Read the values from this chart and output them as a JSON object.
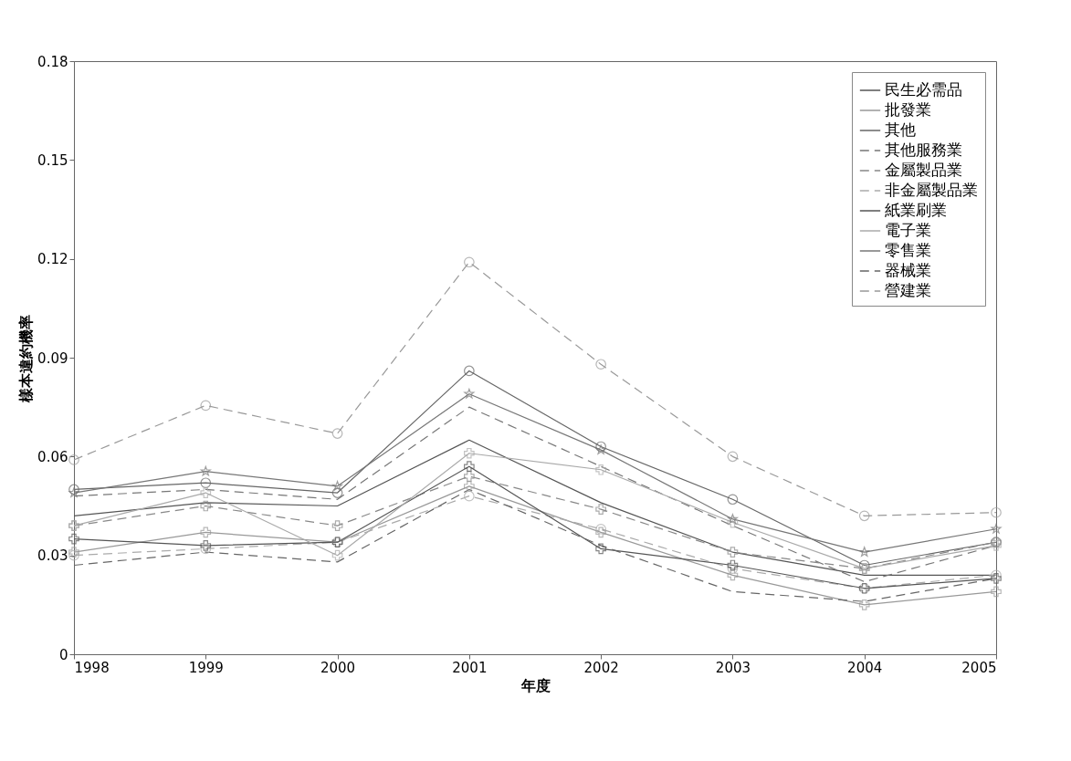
{
  "chart_data": {
    "type": "line",
    "xlabel": "年度",
    "ylabel": "樣本違約機率",
    "x": [
      1998,
      1999,
      2000,
      2001,
      2002,
      2003,
      2004,
      2005
    ],
    "xlim": [
      1998,
      2005
    ],
    "xticks": [
      1998,
      1999,
      2000,
      2001,
      2002,
      2003,
      2004,
      2005
    ],
    "ylim": [
      0,
      0.18
    ],
    "yticks": [
      0,
      0.03,
      0.06,
      0.09,
      0.12,
      0.15,
      0.18
    ],
    "grid": false,
    "legend": "top right",
    "series": [
      {
        "name": "民生必需品",
        "color": "#555555",
        "marker": "none",
        "line_style": "solid",
        "values": [
          0.042,
          0.046,
          0.045,
          0.065,
          0.046,
          0.031,
          0.024,
          0.024
        ]
      },
      {
        "name": "批發業",
        "color": "#999999",
        "marker": "cross",
        "line_style": "solid",
        "values": [
          0.031,
          0.037,
          0.034,
          0.051,
          0.037,
          0.024,
          0.015,
          0.019
        ]
      },
      {
        "name": "其他",
        "color": "#666666",
        "marker": "circle",
        "line_style": "solid",
        "values": [
          0.05,
          0.052,
          0.049,
          0.086,
          0.063,
          0.047,
          0.027,
          0.034
        ]
      },
      {
        "name": "其他服務業",
        "color": "#777777",
        "marker": "none",
        "line_style": "dashed",
        "values": [
          0.048,
          0.05,
          0.047,
          0.075,
          0.057,
          0.039,
          0.022,
          0.033
        ]
      },
      {
        "name": "金屬製品業",
        "color": "#888888",
        "marker": "cross",
        "line_style": "dashed",
        "values": [
          0.039,
          0.045,
          0.039,
          0.054,
          0.044,
          0.031,
          0.026,
          0.034
        ]
      },
      {
        "name": "非金屬製品業",
        "color": "#aaaaaa",
        "marker": "circle",
        "line_style": "dashed",
        "values": [
          0.03,
          0.032,
          0.034,
          0.048,
          0.038,
          0.026,
          0.02,
          0.024
        ]
      },
      {
        "name": "紙業刷業",
        "color": "#555555",
        "marker": "cross",
        "line_style": "solid",
        "values": [
          0.035,
          0.033,
          0.034,
          0.057,
          0.032,
          0.027,
          0.02,
          0.023
        ]
      },
      {
        "name": "電子業",
        "color": "#aaaaaa",
        "marker": "cross",
        "line_style": "solid",
        "values": [
          0.039,
          0.049,
          0.03,
          0.061,
          0.056,
          0.04,
          0.026,
          0.033
        ]
      },
      {
        "name": "零售業",
        "color": "#777777",
        "marker": "star",
        "line_style": "solid",
        "values": [
          0.049,
          0.0555,
          0.051,
          0.079,
          0.062,
          0.041,
          0.031,
          0.038
        ]
      },
      {
        "name": "器械業",
        "color": "#666666",
        "marker": "none",
        "line_style": "dashed",
        "values": [
          0.027,
          0.031,
          0.028,
          0.05,
          0.033,
          0.019,
          0.016,
          0.023
        ]
      },
      {
        "name": "營建業",
        "color": "#999999",
        "marker": "circle",
        "line_style": "dashed",
        "values": [
          0.059,
          0.0755,
          0.067,
          0.119,
          0.088,
          0.06,
          0.042,
          0.043
        ]
      }
    ]
  }
}
